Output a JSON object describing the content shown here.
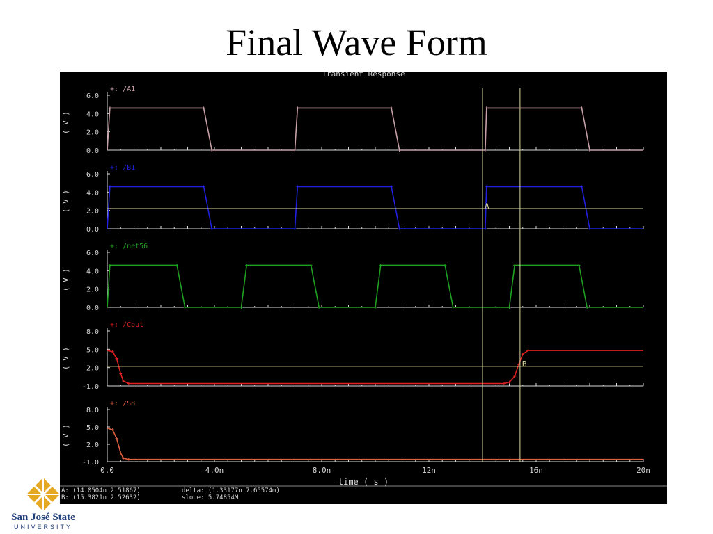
{
  "slide": {
    "title": "Final Wave Form"
  },
  "chart_data": {
    "type": "line",
    "title": "Transient Response",
    "xlabel": "time ( s )",
    "xlim": [
      0,
      20
    ],
    "x_unit": "n",
    "xtick_labels": [
      "0.0",
      "4.0n",
      "8.0n",
      "12n",
      "16n",
      "20n"
    ],
    "xtick_values": [
      0,
      4,
      8,
      12,
      16,
      20
    ],
    "grid": false,
    "colors": {
      "background": "#000000",
      "axis": "#d8d8d8",
      "text": "#d8d8d8",
      "cursor": "#d8d8a0"
    },
    "series": [
      {
        "name": "/A1",
        "marker": "+",
        "color": "#c8a0a8",
        "ylabel": "( V )",
        "ylim": [
          0,
          6
        ],
        "yticks": [
          "6.0",
          "4.0",
          "2.0",
          "0.0"
        ],
        "ytick_values": [
          6,
          4,
          2,
          0
        ],
        "x": [
          0,
          0.1,
          3.6,
          3.9,
          7.0,
          7.1,
          10.6,
          10.9,
          14.1,
          14.15,
          17.7,
          18.0,
          20
        ],
        "y": [
          0,
          4.6,
          4.6,
          0,
          0,
          4.6,
          4.6,
          0,
          0,
          4.6,
          4.6,
          0,
          0
        ]
      },
      {
        "name": "/B1",
        "marker": "+",
        "color": "#2020e0",
        "ylabel": "( V )",
        "ylim": [
          0,
          6
        ],
        "yticks": [
          "6.0",
          "4.0",
          "2.0",
          "0.0"
        ],
        "ytick_values": [
          6,
          4,
          2,
          0
        ],
        "x": [
          0,
          0.1,
          3.6,
          3.9,
          7.0,
          7.1,
          10.6,
          10.9,
          14.1,
          14.15,
          17.7,
          18.0,
          20
        ],
        "y": [
          0,
          4.6,
          4.6,
          0,
          0,
          4.6,
          4.6,
          0,
          0,
          4.6,
          4.6,
          0,
          0
        ]
      },
      {
        "name": "/net56",
        "marker": "+",
        "color": "#20a020",
        "ylabel": "( V )",
        "ylim": [
          0,
          6
        ],
        "yticks": [
          "6.0",
          "4.0",
          "2.0",
          "0.0"
        ],
        "ytick_values": [
          6,
          4,
          2,
          0
        ],
        "x": [
          0,
          0.1,
          2.6,
          2.9,
          5.0,
          5.2,
          7.6,
          7.9,
          10.0,
          10.2,
          12.6,
          12.9,
          15.0,
          15.2,
          17.6,
          17.9,
          20
        ],
        "y": [
          0,
          4.6,
          4.6,
          0,
          0,
          4.6,
          4.6,
          0,
          0,
          4.6,
          4.6,
          0,
          0,
          4.6,
          4.6,
          0,
          0
        ]
      },
      {
        "name": "/Cout",
        "marker": "+",
        "color": "#e02020",
        "ylabel": "( V )",
        "ylim": [
          -1,
          8
        ],
        "yticks": [
          "8.0",
          "5.0",
          "2.0",
          "-1.0"
        ],
        "ytick_values": [
          8,
          5,
          2,
          -1
        ],
        "x": [
          0,
          0.2,
          0.35,
          0.5,
          0.6,
          0.8,
          14.8,
          15.0,
          15.2,
          15.35,
          15.5,
          15.7,
          20
        ],
        "y": [
          4.8,
          4.6,
          3.5,
          1.0,
          -0.2,
          -0.6,
          -0.6,
          -0.4,
          0.6,
          2.5,
          4.2,
          4.8,
          4.8
        ]
      },
      {
        "name": "/S8",
        "marker": "+",
        "color": "#e06040",
        "ylabel": "( V )",
        "ylim": [
          -1,
          8
        ],
        "yticks": [
          "8.0",
          "5.0",
          "2.0",
          "-1.0"
        ],
        "ytick_values": [
          8,
          5,
          2,
          -1
        ],
        "x": [
          0,
          0.2,
          0.35,
          0.5,
          0.6,
          0.8,
          20
        ],
        "y": [
          4.8,
          4.5,
          3.0,
          0.5,
          -0.4,
          -0.6,
          -0.6
        ]
      }
    ],
    "cursor_lines": [
      {
        "label": "A",
        "x": 14.0,
        "y": 2.2
      },
      {
        "label": "B",
        "x": 15.4,
        "y": 2.2
      }
    ],
    "readout": {
      "a": "A: (14.0504n 2.51867)",
      "b": "B: (15.3821n 2.52632)",
      "delta": "delta: (1.33177n 7.65574m)",
      "slope": "slope: 5.74854M"
    }
  },
  "logo": {
    "name": "San José State",
    "sub": "UNIVERSITY",
    "colors": {
      "gold": "#e5a823",
      "blue": "#1f3f7a"
    }
  }
}
